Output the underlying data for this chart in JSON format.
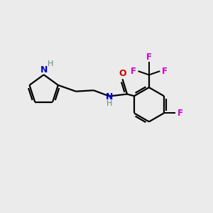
{
  "bg_color": "#ebebeb",
  "bond_color": "#000000",
  "n_color": "#0000cc",
  "o_color": "#cc0000",
  "f_color": "#cc00cc",
  "h_color": "#5a8a8a",
  "line_width": 1.6,
  "figsize": [
    3.0,
    3.0
  ],
  "dpi": 100,
  "xlim": [
    0,
    10
  ],
  "ylim": [
    0,
    10
  ]
}
